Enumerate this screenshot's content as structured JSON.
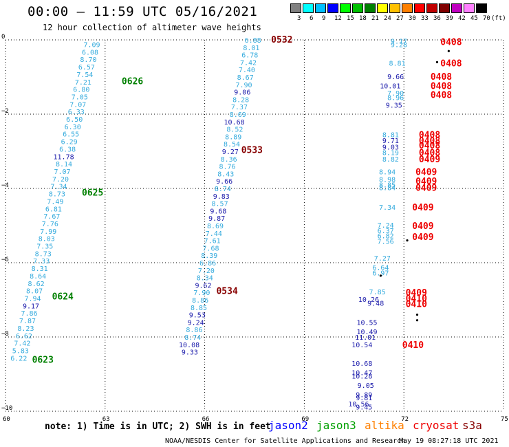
{
  "header": {
    "title": "00:00 – 11:59 UTC 05/16/2021",
    "subtitle": "12 hour collection of altimeter wave heights"
  },
  "legend": {
    "unit": "(ft)",
    "bins": [
      {
        "label": "3",
        "color": "#808080"
      },
      {
        "label": "6",
        "color": "#00ffff"
      },
      {
        "label": "9",
        "color": "#00c0ff"
      },
      {
        "label": "12",
        "color": "#0000ff"
      },
      {
        "label": "15",
        "color": "#00ff00"
      },
      {
        "label": "18",
        "color": "#00c000"
      },
      {
        "label": "21",
        "color": "#008000"
      },
      {
        "label": "24",
        "color": "#ffff00"
      },
      {
        "label": "27",
        "color": "#ffc000"
      },
      {
        "label": "30",
        "color": "#ff8000"
      },
      {
        "label": "33",
        "color": "#ff0000"
      },
      {
        "label": "36",
        "color": "#c00000"
      },
      {
        "label": "39",
        "color": "#800000"
      },
      {
        "label": "42",
        "color": "#c000c0"
      },
      {
        "label": "45",
        "color": "#ff80ff"
      },
      {
        "label": "70",
        "color": "#000000"
      }
    ]
  },
  "map": {
    "lon_labels": [
      "60",
      "63",
      "66",
      "69",
      "72",
      "75"
    ],
    "lat_labels": [
      "0",
      "−2",
      "−4",
      "−6",
      "−8",
      "−10"
    ],
    "colors": {
      "light": "#33aadd",
      "dark": "#1a1aaa",
      "jason3": "#008000",
      "cryosat": "#ee0000",
      "s3a": "#880000"
    },
    "tracks": [
      {
        "time_labels": [
          {
            "text": "0626",
            "lat": -1.1,
            "lon": 63.5,
            "sat": "jason3"
          },
          {
            "text": "0625",
            "lat": -4.1,
            "lon": 62.3,
            "sat": "jason3"
          },
          {
            "text": "0624",
            "lat": -6.9,
            "lon": 61.4,
            "sat": "jason3"
          },
          {
            "text": "0623",
            "lat": -8.6,
            "lon": 60.8,
            "sat": "jason3"
          }
        ],
        "values": [
          [
            "7.09",
            "l"
          ],
          [
            "6.08",
            "l"
          ],
          [
            "8.70",
            "l"
          ],
          [
            "6.57",
            "l"
          ],
          [
            "7.54",
            "l"
          ],
          [
            "7.21",
            "l"
          ],
          [
            "6.80",
            "l"
          ],
          [
            "7.05",
            "l"
          ],
          [
            "7.07",
            "l"
          ],
          [
            "6.33",
            "l"
          ],
          [
            "6.50",
            "l"
          ],
          [
            "6.30",
            "l"
          ],
          [
            "6.55",
            "l"
          ],
          [
            "6.29",
            "l"
          ],
          [
            "6.38",
            "l"
          ],
          [
            "11.78",
            "d"
          ],
          [
            "8.14",
            "l"
          ],
          [
            "7.07",
            "l"
          ],
          [
            "7.20",
            "l"
          ],
          [
            "7.34",
            "l"
          ],
          [
            "8.73",
            "l"
          ],
          [
            "7.49",
            "l"
          ],
          [
            "6.81",
            "l"
          ],
          [
            "7.67",
            "l"
          ],
          [
            "7.76",
            "l"
          ],
          [
            "7.99",
            "l"
          ],
          [
            "8.03",
            "l"
          ],
          [
            "7.35",
            "l"
          ],
          [
            "8.73",
            "l"
          ],
          [
            "7.33",
            "l"
          ],
          [
            "8.31",
            "l"
          ],
          [
            "8.64",
            "l"
          ],
          [
            "8.62",
            "l"
          ],
          [
            "8.07",
            "l"
          ],
          [
            "7.94",
            "l"
          ],
          [
            "9.17",
            "d"
          ],
          [
            "7.86",
            "l"
          ],
          [
            "7.87",
            "l"
          ],
          [
            "8.23",
            "l"
          ],
          [
            "6.62",
            "l"
          ],
          [
            "7.42",
            "l"
          ],
          [
            "5.83",
            "l"
          ],
          [
            "6.22",
            "l"
          ]
        ],
        "lat_start": -0.12,
        "lat_step": -0.201,
        "lon_start": 62.85,
        "lon_end": 60.65
      },
      {
        "time_labels": [
          {
            "text": "0532",
            "lat": 0.02,
            "lon": 68.0,
            "sat": "s3a"
          },
          {
            "text": "0533",
            "lat": -2.95,
            "lon": 67.1,
            "sat": "s3a"
          },
          {
            "text": "0534",
            "lat": -6.75,
            "lon": 66.35,
            "sat": "s3a"
          }
        ],
        "values": [
          [
            "6.88",
            "l"
          ],
          [
            "8.01",
            "l"
          ],
          [
            "6.78",
            "l"
          ],
          [
            "7.42",
            "l"
          ],
          [
            "7.40",
            "l"
          ],
          [
            "8.67",
            "l"
          ],
          [
            "7.90",
            "l"
          ],
          [
            "9.06",
            "d"
          ],
          [
            "8.28",
            "l"
          ],
          [
            "7.37",
            "l"
          ],
          [
            "8.69",
            "l"
          ],
          [
            "10.68",
            "d"
          ],
          [
            "8.52",
            "l"
          ],
          [
            "8.89",
            "l"
          ],
          [
            "8.54",
            "l"
          ],
          [
            "9.27",
            "d"
          ],
          [
            "8.36",
            "l"
          ],
          [
            "8.76",
            "l"
          ],
          [
            "8.43",
            "l"
          ],
          [
            "9.66",
            "d"
          ],
          [
            "8.74",
            "l"
          ],
          [
            "9.83",
            "d"
          ],
          [
            "8.57",
            "l"
          ],
          [
            "9.68",
            "d"
          ],
          [
            "9.87",
            "d"
          ],
          [
            "8.69",
            "l"
          ],
          [
            "7.44",
            "l"
          ],
          [
            "7.61",
            "l"
          ],
          [
            "7.68",
            "l"
          ],
          [
            "8.39",
            "l"
          ],
          [
            "6.86",
            "l"
          ],
          [
            "7.20",
            "l"
          ],
          [
            "8.34",
            "l"
          ],
          [
            "9.62",
            "d"
          ],
          [
            "7.90",
            "l"
          ],
          [
            "8.86",
            "l"
          ],
          [
            "8.85",
            "l"
          ],
          [
            "9.53",
            "d"
          ],
          [
            "9.24",
            "d"
          ],
          [
            "8.86",
            "l"
          ],
          [
            "8.74",
            "l"
          ],
          [
            "10.08",
            "d"
          ],
          [
            "9.33",
            "d"
          ]
        ],
        "lat_start": 0.0,
        "lat_step": -0.2,
        "lon_start": 67.7,
        "lon_end": 65.8
      },
      {
        "time_labels": [
          {
            "text": "0408",
            "lat": -0.05,
            "lon": 73.1,
            "sat": "cryosat"
          },
          {
            "text": "0408",
            "lat": -0.62,
            "lon": 73.1,
            "sat": "cryosat"
          },
          {
            "text": "0408",
            "lat": -0.98,
            "lon": 72.8,
            "sat": "cryosat"
          },
          {
            "text": "0408",
            "lat": -1.23,
            "lon": 72.8,
            "sat": "cryosat"
          },
          {
            "text": "0408",
            "lat": -1.47,
            "lon": 72.8,
            "sat": "cryosat"
          },
          {
            "text": "0408",
            "lat": -2.55,
            "lon": 72.45,
            "sat": "cryosat"
          },
          {
            "text": "0408",
            "lat": -2.7,
            "lon": 72.45,
            "sat": "cryosat"
          },
          {
            "text": "0408",
            "lat": -2.83,
            "lon": 72.45,
            "sat": "cryosat"
          },
          {
            "text": "0408",
            "lat": -3.03,
            "lon": 72.45,
            "sat": "cryosat"
          },
          {
            "text": "0409",
            "lat": -3.2,
            "lon": 72.45,
            "sat": "cryosat"
          },
          {
            "text": "0409",
            "lat": -3.55,
            "lon": 72.35,
            "sat": "cryosat"
          },
          {
            "text": "0409",
            "lat": -3.8,
            "lon": 72.35,
            "sat": "cryosat"
          },
          {
            "text": "0409",
            "lat": -3.97,
            "lon": 72.35,
            "sat": "cryosat"
          },
          {
            "text": "0409",
            "lat": -4.5,
            "lon": 72.25,
            "sat": "cryosat"
          },
          {
            "text": "0409",
            "lat": -5.0,
            "lon": 72.25,
            "sat": "cryosat"
          },
          {
            "text": "0409",
            "lat": -5.3,
            "lon": 72.25,
            "sat": "cryosat"
          },
          {
            "text": "0409",
            "lat": -6.8,
            "lon": 72.05,
            "sat": "cryosat"
          },
          {
            "text": "0410",
            "lat": -6.95,
            "lon": 72.05,
            "sat": "cryosat"
          },
          {
            "text": "0410",
            "lat": -7.1,
            "lon": 72.05,
            "sat": "cryosat"
          },
          {
            "text": "0410",
            "lat": -8.2,
            "lon": 71.95,
            "sat": "cryosat"
          }
        ],
        "points": [
          {
            "t": "9.17",
            "lat": -0.03,
            "lon": 72.1,
            "c": "l"
          },
          {
            "t": "9.28",
            "lat": -0.12,
            "lon": 72.1,
            "c": "l"
          },
          {
            "t": "8.81",
            "lat": -0.62,
            "lon": 72.05,
            "c": "l"
          },
          {
            "t": "9.66",
            "lat": -0.98,
            "lon": 72.0,
            "c": "d"
          },
          {
            "t": "10.01",
            "lat": -1.23,
            "lon": 71.9,
            "c": "d"
          },
          {
            "t": "7.90",
            "lat": -1.43,
            "lon": 72.0,
            "c": "l"
          },
          {
            "t": "8.96",
            "lat": -1.55,
            "lon": 72.0,
            "c": "l"
          },
          {
            "t": "9.35",
            "lat": -1.75,
            "lon": 71.95,
            "c": "d"
          },
          {
            "t": "8.81",
            "lat": -2.55,
            "lon": 71.85,
            "c": "l"
          },
          {
            "t": "9.71",
            "lat": -2.7,
            "lon": 71.85,
            "c": "d"
          },
          {
            "t": "9.03",
            "lat": -2.88,
            "lon": 71.85,
            "c": "d"
          },
          {
            "t": "8.19",
            "lat": -3.03,
            "lon": 71.85,
            "c": "l"
          },
          {
            "t": "8.82",
            "lat": -3.2,
            "lon": 71.85,
            "c": "l"
          },
          {
            "t": "8.94",
            "lat": -3.55,
            "lon": 71.75,
            "c": "l"
          },
          {
            "t": "8.98",
            "lat": -3.75,
            "lon": 71.75,
            "c": "l"
          },
          {
            "t": "8.85",
            "lat": -3.9,
            "lon": 71.75,
            "c": "l"
          },
          {
            "t": "8.84",
            "lat": -3.97,
            "lon": 71.75,
            "c": "l"
          },
          {
            "t": "7.34",
            "lat": -4.5,
            "lon": 71.75,
            "c": "l"
          },
          {
            "t": "7.24",
            "lat": -4.98,
            "lon": 71.7,
            "c": "l"
          },
          {
            "t": "6.37",
            "lat": -5.13,
            "lon": 71.7,
            "c": "l"
          },
          {
            "t": "6.82",
            "lat": -5.27,
            "lon": 71.7,
            "c": "l"
          },
          {
            "t": "7.56",
            "lat": -5.42,
            "lon": 71.7,
            "c": "l"
          },
          {
            "t": "7.27",
            "lat": -5.87,
            "lon": 71.6,
            "c": "l"
          },
          {
            "t": "6.64",
            "lat": -6.12,
            "lon": 71.55,
            "c": "l"
          },
          {
            "t": "6.97",
            "lat": -6.27,
            "lon": 71.55,
            "c": "l"
          },
          {
            "t": "7.85",
            "lat": -6.78,
            "lon": 71.45,
            "c": "l"
          },
          {
            "t": "10.26",
            "lat": -6.98,
            "lon": 71.25,
            "c": "d"
          },
          {
            "t": "9.48",
            "lat": -7.08,
            "lon": 71.4,
            "c": "d"
          },
          {
            "t": "10.55",
            "lat": -7.6,
            "lon": 71.2,
            "c": "d"
          },
          {
            "t": "10.49",
            "lat": -7.85,
            "lon": 71.2,
            "c": "d"
          },
          {
            "t": "11.01",
            "lat": -8.0,
            "lon": 71.15,
            "c": "d"
          },
          {
            "t": "10.54",
            "lat": -8.2,
            "lon": 71.05,
            "c": "d"
          },
          {
            "t": "10.68",
            "lat": -8.7,
            "lon": 71.05,
            "c": "d"
          },
          {
            "t": "10.47",
            "lat": -8.95,
            "lon": 71.05,
            "c": "d"
          },
          {
            "t": "10.28",
            "lat": -9.05,
            "lon": 71.05,
            "c": "d"
          },
          {
            "t": "9.05",
            "lat": -9.3,
            "lon": 71.1,
            "c": "d"
          },
          {
            "t": "9.89",
            "lat": -9.55,
            "lon": 71.05,
            "c": "d"
          },
          {
            "t": "9.81",
            "lat": -9.63,
            "lon": 71.05,
            "c": "d"
          },
          {
            "t": "10.56",
            "lat": -9.8,
            "lon": 70.95,
            "c": "d"
          },
          {
            "t": "9.45",
            "lat": -9.88,
            "lon": 71.05,
            "c": "d"
          }
        ]
      }
    ]
  },
  "note": "note: 1) Time is in UTC; 2) SWH is in feet",
  "satellites": [
    {
      "name": "jason2",
      "color": "#0000ff"
    },
    {
      "name": "jason3",
      "color": "#00a000"
    },
    {
      "name": "altika",
      "color": "#ff8000"
    },
    {
      "name": "cryosat",
      "color": "#ee0000"
    },
    {
      "name": "s3a",
      "color": "#880000"
    }
  ],
  "footer": {
    "credit": "NOAA/NESDIS Center for Satellite Applications and Research",
    "stamp": "May 19 08:27:18 UTC 2021"
  }
}
